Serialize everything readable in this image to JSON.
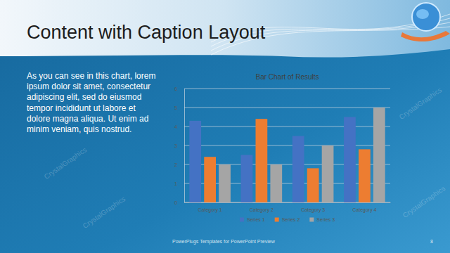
{
  "slide": {
    "title": "Content with Caption Layout",
    "caption": [
      "As you can see in this chart, lorem",
      "ipsum dolor sit amet, consectetur",
      "adipiscing elit, sed do eiusmod",
      "tempor incididunt ut labore et",
      "dolore magna aliqua. Ut enim ad",
      "minim veniam, quis nostrud."
    ],
    "footer": "PowerPlugs Templates for PowerPoint Preview",
    "page_number": 8,
    "watermark": "CrystalGraphics"
  },
  "chart_data": {
    "type": "bar",
    "title": "Bar Chart of Results",
    "categories": [
      "Category 1",
      "Category 2",
      "Category 3",
      "Category 4"
    ],
    "series": [
      {
        "name": "Series 1",
        "color": "#4472c4",
        "values": [
          4.3,
          2.5,
          3.5,
          4.5
        ]
      },
      {
        "name": "Series 2",
        "color": "#ed7d31",
        "values": [
          2.4,
          4.4,
          1.8,
          2.8
        ]
      },
      {
        "name": "Series 3",
        "color": "#a5a5a5",
        "values": [
          2,
          2,
          3,
          5
        ]
      }
    ],
    "ylim": [
      0,
      6
    ],
    "yticks": [
      0,
      1,
      2,
      3,
      4,
      5,
      6
    ],
    "grid": true,
    "legend": "bottom"
  }
}
